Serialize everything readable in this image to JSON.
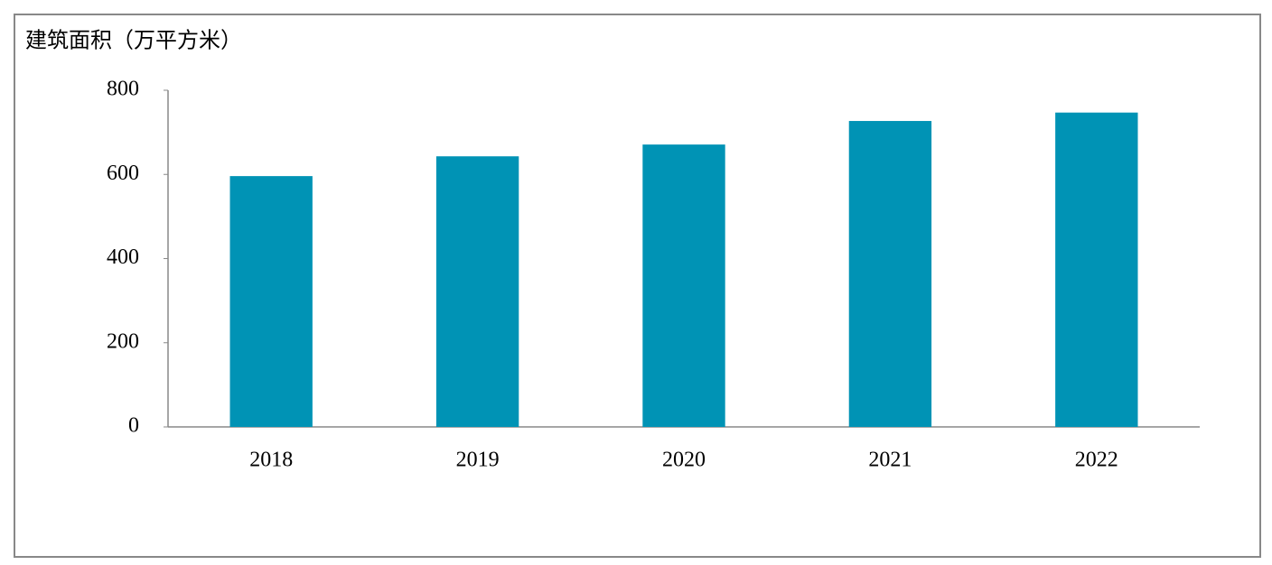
{
  "chart_data": {
    "type": "bar",
    "y_label": "建筑面积（万平方米）",
    "categories": [
      "2018",
      "2019",
      "2020",
      "2021",
      "2022"
    ],
    "values": [
      596,
      643,
      671,
      727,
      747
    ],
    "color": "#0093b5",
    "ylim": [
      0,
      800
    ],
    "yticks": [
      0,
      200,
      400,
      600,
      800
    ],
    "grid": false
  }
}
